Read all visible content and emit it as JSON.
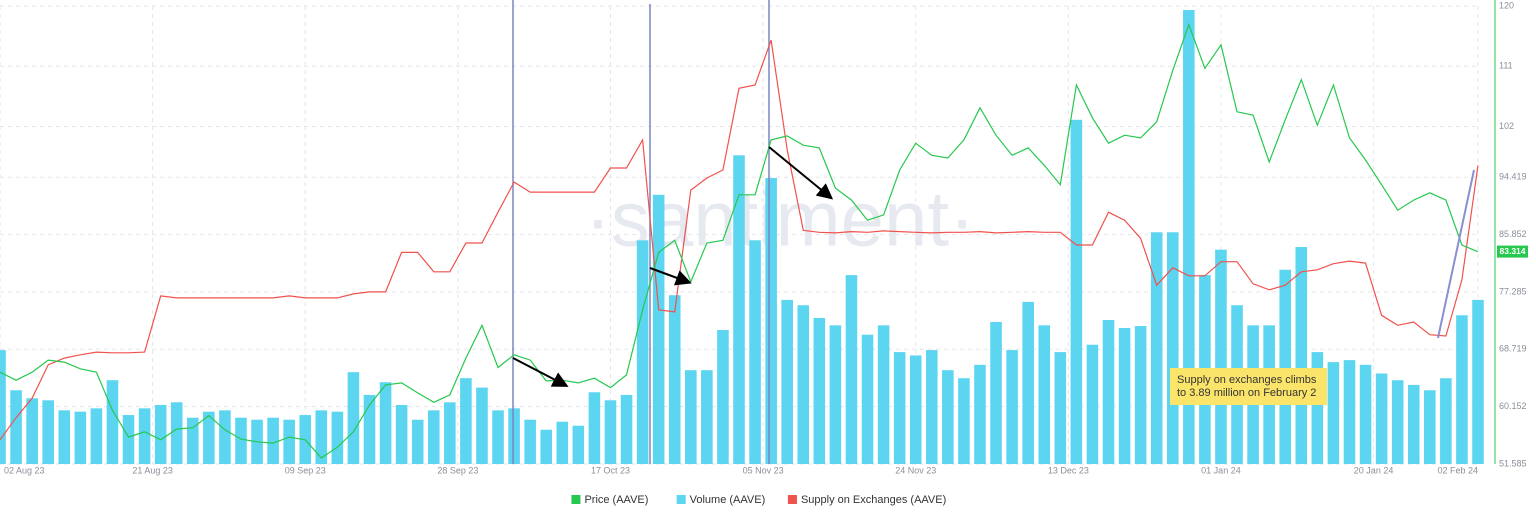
{
  "chart_data": {
    "type": "line",
    "watermark": "·santiment·",
    "price_badge": 83.314,
    "annotation": [
      "Supply on exchanges climbs",
      "to 3.89 million on February 2"
    ],
    "x": [
      "2023-08-02",
      "2023-08-04",
      "2023-08-06",
      "2023-08-08",
      "2023-08-10",
      "2023-08-12",
      "2023-08-14",
      "2023-08-16",
      "2023-08-18",
      "2023-08-20",
      "2023-08-22",
      "2023-08-24",
      "2023-08-26",
      "2023-08-28",
      "2023-08-30",
      "2023-09-01",
      "2023-09-03",
      "2023-09-05",
      "2023-09-07",
      "2023-09-09",
      "2023-09-11",
      "2023-09-13",
      "2023-09-15",
      "2023-09-17",
      "2023-09-19",
      "2023-09-21",
      "2023-09-23",
      "2023-09-25",
      "2023-09-27",
      "2023-09-29",
      "2023-10-01",
      "2023-10-03",
      "2023-10-05",
      "2023-10-07",
      "2023-10-09",
      "2023-10-11",
      "2023-10-13",
      "2023-10-15",
      "2023-10-17",
      "2023-10-19",
      "2023-10-21",
      "2023-10-23",
      "2023-10-25",
      "2023-10-27",
      "2023-10-29",
      "2023-10-31",
      "2023-11-02",
      "2023-11-04",
      "2023-11-06",
      "2023-11-08",
      "2023-11-10",
      "2023-11-12",
      "2023-11-14",
      "2023-11-16",
      "2023-11-18",
      "2023-11-20",
      "2023-11-22",
      "2023-11-24",
      "2023-11-26",
      "2023-11-28",
      "2023-11-30",
      "2023-12-02",
      "2023-12-04",
      "2023-12-06",
      "2023-12-08",
      "2023-12-10",
      "2023-12-12",
      "2023-12-14",
      "2023-12-16",
      "2023-12-18",
      "2023-12-20",
      "2023-12-22",
      "2023-12-24",
      "2023-12-26",
      "2023-12-28",
      "2023-12-30",
      "2024-01-01",
      "2024-01-03",
      "2024-01-05",
      "2024-01-07",
      "2024-01-09",
      "2024-01-11",
      "2024-01-13",
      "2024-01-15",
      "2024-01-17",
      "2024-01-19",
      "2024-01-21",
      "2024-01-23",
      "2024-01-25",
      "2024-01-27",
      "2024-01-29",
      "2024-01-31",
      "2024-02-02"
    ],
    "xlim": [
      "2023-08-02",
      "2024-02-02"
    ],
    "xticks": [
      {
        "value": "2023-08-02",
        "label": "02 Aug 23"
      },
      {
        "value": "2023-08-21",
        "label": "21 Aug 23"
      },
      {
        "value": "2023-09-09",
        "label": "09 Sep 23"
      },
      {
        "value": "2023-09-28",
        "label": "28 Sep 23"
      },
      {
        "value": "2023-10-17",
        "label": "17 Oct 23"
      },
      {
        "value": "2023-11-05",
        "label": "05 Nov 23"
      },
      {
        "value": "2023-11-24",
        "label": "24 Nov 23"
      },
      {
        "value": "2023-12-13",
        "label": "13 Dec 23"
      },
      {
        "value": "2024-01-01",
        "label": "01 Jan 24"
      },
      {
        "value": "2024-01-20",
        "label": "20 Jan 24"
      },
      {
        "value": "2024-02-02",
        "label": "02 Feb 24"
      }
    ],
    "ylim": [
      51.585,
      120
    ],
    "yticks": [
      51.585,
      60.152,
      68.719,
      77.285,
      85.852,
      94.419,
      102,
      111,
      120
    ],
    "grid": true,
    "legend": "bottom",
    "series": [
      {
        "name": "Price (AAVE)",
        "type": "line",
        "color": "#26c84f",
        "values": [
          65.3,
          64.1,
          65.3,
          67.1,
          66.8,
          65.8,
          65.3,
          59.6,
          55.6,
          56.4,
          55.2,
          56.8,
          57.0,
          58.8,
          56.7,
          55.3,
          54.9,
          54.7,
          55.6,
          55.2,
          52.5,
          54.1,
          56.4,
          60.4,
          63.4,
          63.7,
          62.2,
          60.8,
          61.9,
          67.4,
          72.3,
          66.0,
          67.9,
          67.1,
          64.0,
          64.1,
          63.7,
          64.4,
          63.0,
          64.9,
          74.6,
          83.2,
          85.0,
          78.8,
          84.6,
          85.0,
          91.8,
          91.8,
          100.0,
          100.6,
          99.2,
          98.8,
          92.8,
          91.0,
          88.0,
          88.8,
          95.5,
          99.5,
          97.7,
          97.3,
          100.0,
          104.8,
          100.7,
          97.7,
          98.8,
          96.2,
          93.3,
          108.2,
          103.3,
          99.5,
          100.7,
          100.3,
          102.7,
          110.4,
          117.2,
          110.7,
          114.2,
          104.2,
          103.7,
          96.7,
          103.0,
          109.0,
          102.2,
          108.2,
          100.3,
          97.0,
          93.3,
          89.5,
          91.0,
          92.1,
          91.0,
          84.3,
          83.3
        ]
      },
      {
        "name": "Volume (AAVE)",
        "type": "bar",
        "color": "#5bd5f0",
        "values": [
          68.6,
          62.6,
          61.4,
          61.1,
          59.6,
          59.4,
          59.9,
          64.1,
          58.9,
          59.9,
          60.4,
          60.8,
          58.5,
          59.4,
          59.6,
          58.5,
          58.2,
          58.5,
          58.2,
          58.9,
          59.6,
          59.4,
          65.3,
          61.9,
          63.8,
          60.4,
          58.2,
          59.6,
          60.8,
          64.4,
          63.0,
          59.6,
          59.9,
          58.2,
          56.7,
          57.9,
          57.3,
          62.3,
          61.1,
          61.9,
          85.0,
          91.8,
          76.8,
          65.6,
          65.6,
          71.6,
          97.7,
          85.0,
          94.3,
          76.1,
          75.3,
          73.4,
          72.3,
          79.8,
          70.9,
          72.3,
          68.3,
          67.8,
          68.6,
          65.6,
          64.4,
          66.4,
          72.8,
          68.6,
          75.8,
          72.3,
          68.3,
          103.0,
          69.4,
          73.1,
          71.9,
          72.2,
          86.2,
          86.2,
          119.4,
          79.8,
          83.6,
          75.3,
          72.3,
          72.3,
          80.6,
          84.0,
          68.3,
          66.8,
          67.1,
          66.4,
          65.1,
          64.1,
          63.4,
          62.6,
          64.4,
          73.8,
          76.1
        ]
      },
      {
        "name": "Supply on Exchanges (AAVE)",
        "type": "line",
        "color": "#f0524d",
        "values": [
          55.2,
          58.5,
          61.4,
          66.4,
          67.4,
          67.9,
          68.3,
          68.2,
          68.2,
          68.3,
          76.7,
          76.4,
          76.4,
          76.4,
          76.4,
          76.4,
          76.4,
          76.4,
          76.7,
          76.4,
          76.4,
          76.4,
          77.0,
          77.3,
          77.3,
          83.2,
          83.2,
          80.3,
          80.3,
          84.6,
          84.6,
          89.2,
          93.7,
          92.2,
          92.2,
          92.2,
          92.2,
          92.2,
          95.8,
          95.8,
          100.0,
          74.6,
          74.3,
          92.5,
          94.3,
          95.5,
          107.7,
          108.2,
          114.9,
          98.5,
          86.5,
          86.2,
          86.1,
          86.3,
          86.2,
          86.4,
          86.3,
          86.2,
          86.1,
          86.2,
          86.2,
          86.3,
          86.1,
          86.2,
          86.3,
          86.2,
          86.2,
          84.3,
          84.3,
          89.2,
          88.0,
          85.3,
          78.3,
          80.9,
          79.7,
          79.7,
          81.8,
          81.8,
          78.5,
          77.6,
          78.3,
          80.3,
          80.6,
          81.5,
          81.9,
          81.6,
          73.8,
          72.3,
          72.8,
          70.9,
          70.7,
          79.1,
          96.2
        ]
      }
    ]
  }
}
